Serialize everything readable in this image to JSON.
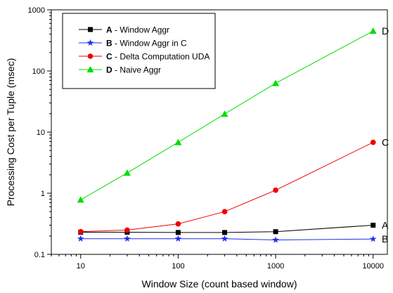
{
  "chart_data": {
    "type": "line",
    "xscale": "log",
    "yscale": "log",
    "xlabel": "Window Size (count based window)",
    "ylabel": "Processing Cost per Tuple (msec)",
    "xlim": [
      5,
      14000
    ],
    "ylim": [
      0.1,
      1000
    ],
    "xticks": [
      10,
      100,
      1000,
      10000
    ],
    "xtick_labels": [
      "10",
      "100",
      "1000",
      "10000"
    ],
    "yticks": [
      0.1,
      1,
      10,
      100,
      1000
    ],
    "ytick_labels": [
      "0.1",
      "1",
      "10",
      "100",
      "1000"
    ],
    "grid": false,
    "legend_position": "top-left",
    "x": [
      10,
      30,
      100,
      300,
      1000,
      10000
    ],
    "series": [
      {
        "key": "A",
        "bold": "A",
        "text": " - Window Aggr",
        "end_label": "A",
        "color": "#000000",
        "marker": "square",
        "values": [
          0.23,
          0.23,
          0.228,
          0.228,
          0.235,
          0.3
        ]
      },
      {
        "key": "B",
        "bold": "B",
        "text": " - Window Aggr in C",
        "end_label": "B",
        "color": "#1f2ff0",
        "marker": "star",
        "values": [
          0.18,
          0.18,
          0.18,
          0.18,
          0.172,
          0.178
        ]
      },
      {
        "key": "C",
        "bold": "C",
        "text": " - Delta Computation UDA",
        "end_label": "C",
        "color": "#ee0000",
        "marker": "circle",
        "values": [
          0.235,
          0.25,
          0.315,
          0.5,
          1.12,
          6.8
        ]
      },
      {
        "key": "D",
        "bold": "D",
        "text": " - Naive Aggr",
        "end_label": "D",
        "color": "#00dd00",
        "marker": "triangle",
        "values": [
          0.78,
          2.15,
          6.8,
          19.8,
          63,
          450
        ]
      }
    ]
  }
}
